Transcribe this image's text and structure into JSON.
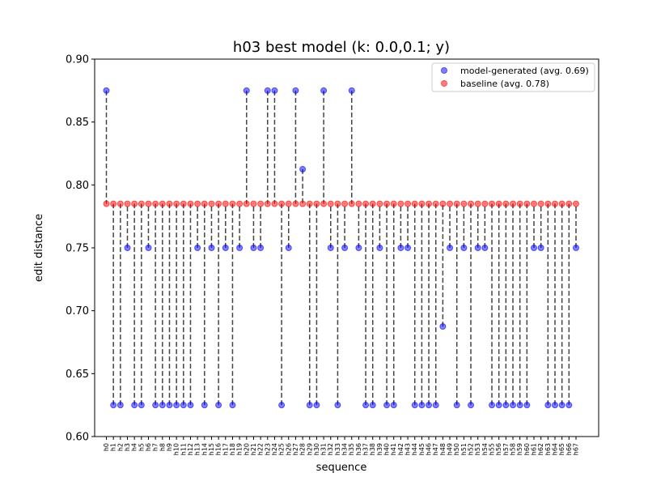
{
  "chart_data": {
    "type": "scatter",
    "title": "h03 best model (k: 0.0,0.1; y)",
    "xlabel": "sequence",
    "ylabel": "edit distance",
    "ylim": [
      0.6,
      0.9
    ],
    "yticks": [
      "0.60",
      "0.65",
      "0.70",
      "0.75",
      "0.80",
      "0.85",
      "0.90"
    ],
    "grid": false,
    "legend_position": "top-right",
    "categories": [
      "h0",
      "h1",
      "h2",
      "h3",
      "h4",
      "h5",
      "h6",
      "h7",
      "h8",
      "h9",
      "h10",
      "h11",
      "h12",
      "h13",
      "h14",
      "h15",
      "h16",
      "h17",
      "h18",
      "h19",
      "h20",
      "h21",
      "h22",
      "h23",
      "h24",
      "h25",
      "h26",
      "h27",
      "h28",
      "h29",
      "h30",
      "h31",
      "h32",
      "h33",
      "h34",
      "h35",
      "h36",
      "h37",
      "h38",
      "h39",
      "h40",
      "h41",
      "h42",
      "h43",
      "h44",
      "h45",
      "h46",
      "h47",
      "h48",
      "h49",
      "h50",
      "h51",
      "h52",
      "h53",
      "h54",
      "h55",
      "h56",
      "h57",
      "h58",
      "h59",
      "h60",
      "h61",
      "h62",
      "h63",
      "h64",
      "h65",
      "h66",
      "h67"
    ],
    "series": [
      {
        "name": "model-generated (avg. 0.69)",
        "color": "#0000ff",
        "values": [
          0.875,
          0.625,
          0.625,
          0.75,
          0.625,
          0.625,
          0.75,
          0.625,
          0.625,
          0.625,
          0.625,
          0.625,
          0.625,
          0.75,
          0.625,
          0.75,
          0.625,
          0.75,
          0.625,
          0.75,
          0.875,
          0.75,
          0.75,
          0.875,
          0.875,
          0.625,
          0.75,
          0.875,
          0.8125,
          0.625,
          0.625,
          0.875,
          0.75,
          0.625,
          0.75,
          0.875,
          0.75,
          0.625,
          0.625,
          0.75,
          0.625,
          0.625,
          0.75,
          0.75,
          0.625,
          0.625,
          0.625,
          0.625,
          0.6875,
          0.75,
          0.625,
          0.75,
          0.625,
          0.75,
          0.75,
          0.625,
          0.625,
          0.625,
          0.625,
          0.625,
          0.625,
          0.75,
          0.75,
          0.625,
          0.625,
          0.625,
          0.625,
          0.75
        ]
      },
      {
        "name": "baseline (avg. 0.78)",
        "color": "#ff0000",
        "values": [
          0.785,
          0.785,
          0.785,
          0.785,
          0.785,
          0.785,
          0.785,
          0.785,
          0.785,
          0.785,
          0.785,
          0.785,
          0.785,
          0.785,
          0.785,
          0.785,
          0.785,
          0.785,
          0.785,
          0.785,
          0.785,
          0.785,
          0.785,
          0.785,
          0.785,
          0.785,
          0.785,
          0.785,
          0.785,
          0.785,
          0.785,
          0.785,
          0.785,
          0.785,
          0.785,
          0.785,
          0.785,
          0.785,
          0.785,
          0.785,
          0.785,
          0.785,
          0.785,
          0.785,
          0.785,
          0.785,
          0.785,
          0.785,
          0.785,
          0.785,
          0.785,
          0.785,
          0.785,
          0.785,
          0.785,
          0.785,
          0.785,
          0.785,
          0.785,
          0.785,
          0.785,
          0.785,
          0.785,
          0.785,
          0.785,
          0.785,
          0.785,
          0.785
        ]
      }
    ]
  }
}
